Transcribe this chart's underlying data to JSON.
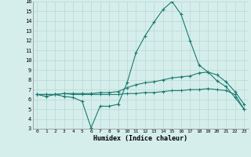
{
  "xlabel": "Humidex (Indice chaleur)",
  "x": [
    0,
    1,
    2,
    3,
    4,
    5,
    6,
    7,
    8,
    9,
    10,
    11,
    12,
    13,
    14,
    15,
    16,
    17,
    18,
    19,
    20,
    21,
    22,
    23
  ],
  "line1": [
    6.5,
    6.3,
    6.5,
    6.3,
    6.2,
    5.8,
    3.1,
    5.3,
    5.3,
    5.5,
    7.7,
    10.8,
    12.5,
    13.9,
    15.2,
    16.0,
    14.7,
    12.0,
    9.5,
    8.8,
    7.9,
    7.3,
    6.2,
    5.0
  ],
  "line2": [
    6.5,
    6.5,
    6.5,
    6.6,
    6.6,
    6.6,
    6.6,
    6.7,
    6.7,
    6.8,
    7.2,
    7.5,
    7.7,
    7.8,
    8.0,
    8.2,
    8.3,
    8.4,
    8.7,
    8.8,
    8.5,
    7.8,
    6.8,
    5.5
  ],
  "line3": [
    6.5,
    6.5,
    6.5,
    6.6,
    6.5,
    6.5,
    6.5,
    6.5,
    6.5,
    6.5,
    6.6,
    6.6,
    6.7,
    6.7,
    6.8,
    6.9,
    6.9,
    7.0,
    7.0,
    7.1,
    7.0,
    6.9,
    6.5,
    5.0
  ],
  "bg_color": "#d5eeeb",
  "line_color": "#1a7a6e",
  "grid_color": "#b8d8d4",
  "ylim": [
    3,
    16
  ],
  "xlim": [
    -0.5,
    23.5
  ],
  "yticks": [
    3,
    4,
    5,
    6,
    7,
    8,
    9,
    10,
    11,
    12,
    13,
    14,
    15,
    16
  ],
  "xticks": [
    0,
    1,
    2,
    3,
    4,
    5,
    6,
    7,
    8,
    9,
    10,
    11,
    12,
    13,
    14,
    15,
    16,
    17,
    18,
    19,
    20,
    21,
    22,
    23
  ]
}
